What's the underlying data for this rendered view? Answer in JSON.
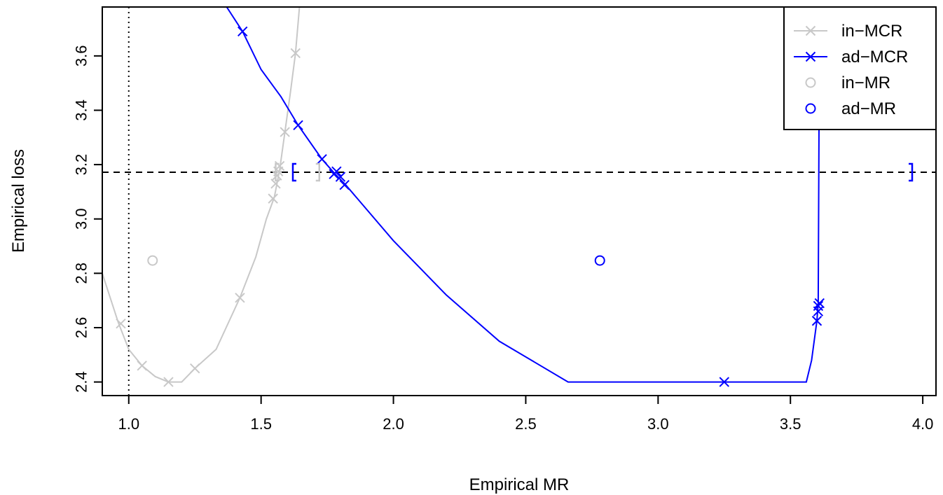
{
  "chart_data": {
    "type": "line",
    "xlabel": "Empirical MR",
    "ylabel": "Empirical loss",
    "xlim": [
      0.9,
      4.05
    ],
    "ylim": [
      2.35,
      3.78
    ],
    "x_ticks": [
      1.0,
      1.5,
      2.0,
      2.5,
      3.0,
      3.5,
      4.0
    ],
    "x_tick_labels": [
      "1.0",
      "1.5",
      "2.0",
      "2.5",
      "3.0",
      "3.5",
      "4.0"
    ],
    "y_ticks": [
      2.4,
      2.6,
      2.8,
      3.0,
      3.2,
      3.4,
      3.6
    ],
    "y_tick_labels": [
      "2.4",
      "2.6",
      "2.8",
      "3.0",
      "3.2",
      "3.4",
      "3.6"
    ],
    "grid": false,
    "legend_position": "top-right",
    "legend": [
      {
        "label": "in−MCR",
        "symbol": "line-x",
        "color": "#c8c8c8"
      },
      {
        "label": "ad−MCR",
        "symbol": "line-x",
        "color": "#0000ff"
      },
      {
        "label": "in−MR",
        "symbol": "circle",
        "color": "#c8c8c8"
      },
      {
        "label": "ad−MR",
        "symbol": "circle",
        "color": "#0000ff"
      }
    ],
    "reference_lines": {
      "horizontal_dashed_y": 3.172,
      "vertical_dotted_x": 1.0
    },
    "series": [
      {
        "name": "in−MCR",
        "color": "#c8c8c8",
        "line": [
          [
            0.88,
            2.86
          ],
          [
            0.92,
            2.74
          ],
          [
            0.96,
            2.62
          ],
          [
            1.0,
            2.52
          ],
          [
            1.05,
            2.46
          ],
          [
            1.1,
            2.42
          ],
          [
            1.15,
            2.4
          ],
          [
            1.2,
            2.4
          ],
          [
            1.25,
            2.45
          ],
          [
            1.33,
            2.52
          ],
          [
            1.42,
            2.71
          ],
          [
            1.48,
            2.86
          ],
          [
            1.52,
            3.0
          ],
          [
            1.55,
            3.08
          ],
          [
            1.57,
            3.18
          ],
          [
            1.59,
            3.32
          ],
          [
            1.61,
            3.46
          ],
          [
            1.63,
            3.61
          ],
          [
            1.645,
            3.78
          ]
        ],
        "markers": [
          [
            0.97,
            2.615
          ],
          [
            1.05,
            2.46
          ],
          [
            1.15,
            2.4
          ],
          [
            1.25,
            2.45
          ],
          [
            1.42,
            2.71
          ],
          [
            1.545,
            3.075
          ],
          [
            1.555,
            3.13
          ],
          [
            1.56,
            3.16
          ],
          [
            1.565,
            3.175
          ],
          [
            1.57,
            3.195
          ],
          [
            1.59,
            3.32
          ],
          [
            1.63,
            3.61
          ]
        ]
      },
      {
        "name": "ad−MCR",
        "color": "#0000ff",
        "line": [
          [
            1.37,
            3.78
          ],
          [
            1.43,
            3.69
          ],
          [
            1.5,
            3.55
          ],
          [
            1.575,
            3.45
          ],
          [
            1.64,
            3.345
          ],
          [
            1.73,
            3.22
          ],
          [
            1.78,
            3.165
          ],
          [
            1.82,
            3.125
          ],
          [
            2.0,
            2.92
          ],
          [
            2.2,
            2.72
          ],
          [
            2.4,
            2.55
          ],
          [
            2.66,
            2.4
          ],
          [
            3.0,
            2.4
          ],
          [
            3.25,
            2.4
          ],
          [
            3.56,
            2.4
          ],
          [
            3.58,
            2.48
          ],
          [
            3.6,
            2.625
          ],
          [
            3.605,
            2.69
          ],
          [
            3.61,
            3.78
          ]
        ],
        "markers": [
          [
            1.43,
            3.69
          ],
          [
            1.64,
            3.345
          ],
          [
            1.73,
            3.22
          ],
          [
            1.775,
            3.165
          ],
          [
            1.785,
            3.175
          ],
          [
            1.8,
            3.155
          ],
          [
            1.815,
            3.125
          ],
          [
            3.25,
            2.4
          ],
          [
            3.6,
            2.625
          ],
          [
            3.605,
            2.66
          ],
          [
            3.605,
            2.68
          ],
          [
            3.61,
            2.69
          ]
        ]
      },
      {
        "name": "in−MR",
        "color": "#c8c8c8",
        "points": [
          [
            1.09,
            2.847
          ]
        ]
      },
      {
        "name": "ad−MR",
        "color": "#0000ff",
        "points": [
          [
            2.78,
            2.847
          ]
        ]
      }
    ],
    "intervals": [
      {
        "series": "in−MCR",
        "color": "#c8c8c8",
        "y": 3.172,
        "low": 1.555,
        "high": 1.72
      },
      {
        "series": "ad−MCR",
        "color": "#0000ff",
        "y": 3.172,
        "low": 1.62,
        "high": 3.96
      }
    ]
  }
}
